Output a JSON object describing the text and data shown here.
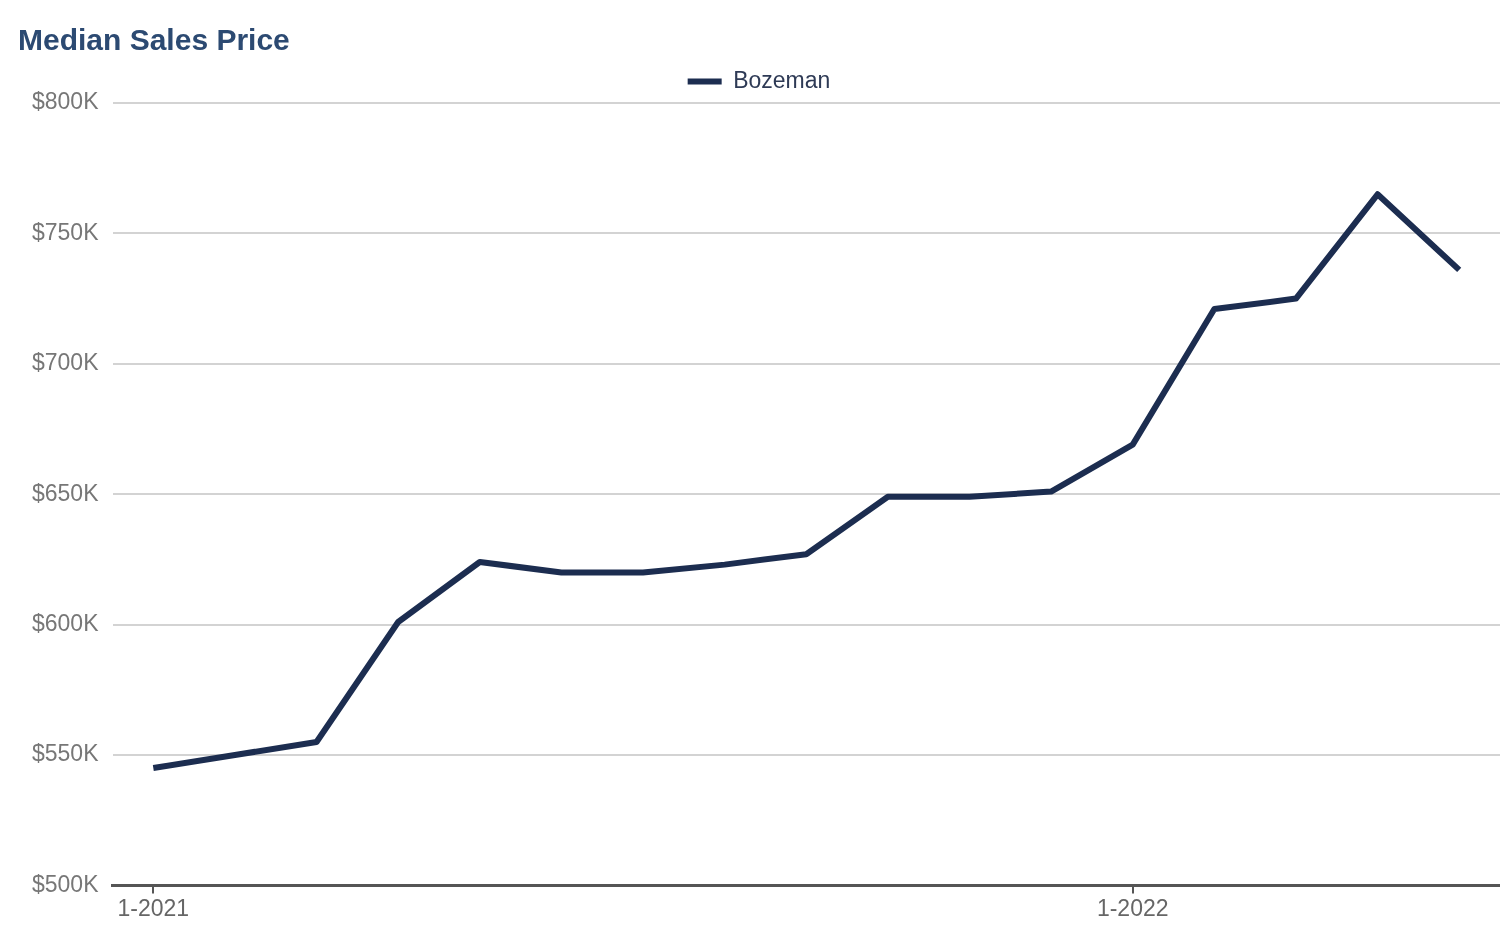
{
  "chart_data": {
    "type": "line",
    "title": "Median Sales Price",
    "categories": [
      "1-2021",
      null,
      null,
      null,
      null,
      null,
      null,
      null,
      null,
      null,
      null,
      null,
      "1-2022",
      null,
      null,
      null,
      null
    ],
    "series": [
      {
        "name": "Bozeman",
        "color": "#1c2d50",
        "values": [
          545000,
          550000,
          555000,
          601000,
          624000,
          620000,
          620000,
          623000,
          627000,
          649000,
          649000,
          651000,
          669000,
          721000,
          725000,
          765000,
          736000
        ]
      }
    ],
    "ylim": [
      500000,
      800000
    ],
    "yticks": [
      {
        "value": 500000,
        "label": "$500K"
      },
      {
        "value": 550000,
        "label": "$550K"
      },
      {
        "value": 600000,
        "label": "$600K"
      },
      {
        "value": 650000,
        "label": "$650K"
      },
      {
        "value": 700000,
        "label": "$700K"
      },
      {
        "value": 750000,
        "label": "$750K"
      },
      {
        "value": 800000,
        "label": "$800K"
      }
    ],
    "grid": "y",
    "legend": "top",
    "marker": "none",
    "line_style": "solid"
  }
}
